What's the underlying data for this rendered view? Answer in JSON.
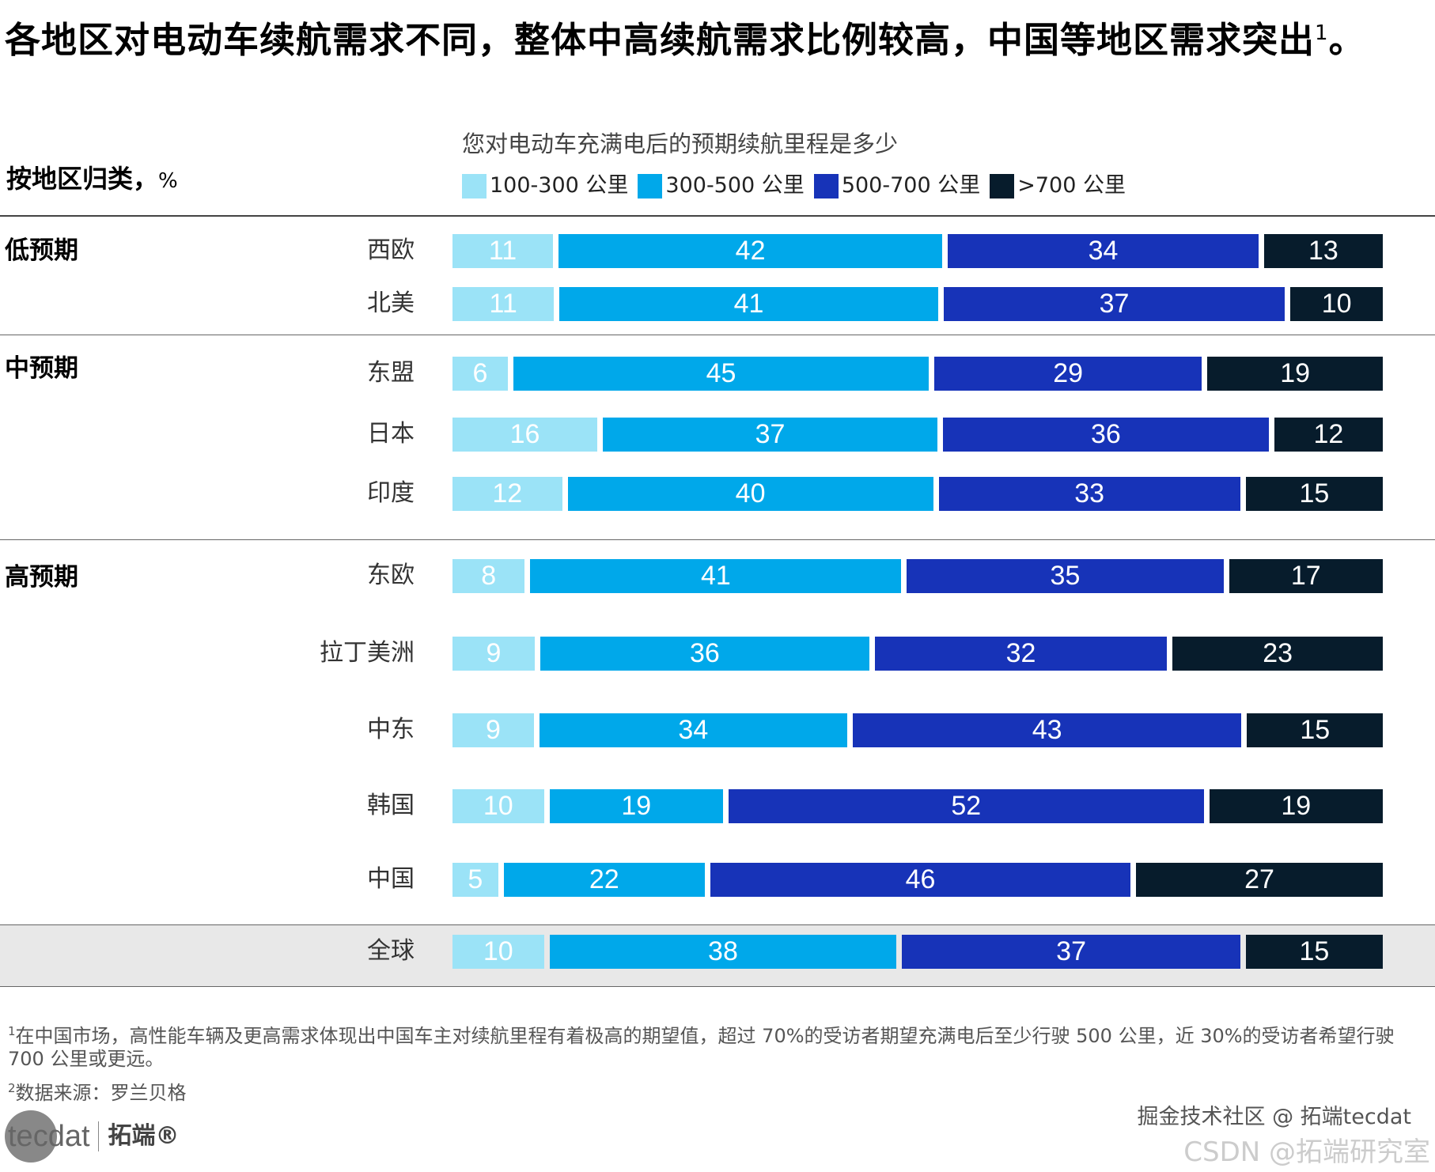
{
  "title": "各地区对电动车续航需求不同，整体中高续航需求比例较高，中国等地区需求突出",
  "title_sup": "1",
  "title_end": "。",
  "subtitle": "按地区归类，",
  "subtitle_unit": "%",
  "chart_data": {
    "type": "bar",
    "orientation": "horizontal-stacked-100",
    "title": "您对电动车充满电后的预期续航里程是多少",
    "legend": [
      "100-300 公里",
      "300-500 公里",
      "500-700 公里",
      ">700 公里"
    ],
    "legend_placement": "top",
    "colors": [
      "#9be3f7",
      "#00a8ea",
      "#1733b8",
      "#071c2c"
    ],
    "groups": [
      {
        "name": "低预期",
        "rows": [
          {
            "region": "西欧",
            "values": [
              11,
              42,
              34,
              13
            ]
          },
          {
            "region": "北美",
            "values": [
              11,
              41,
              37,
              10
            ]
          }
        ]
      },
      {
        "name": "中预期",
        "rows": [
          {
            "region": "东盟",
            "values": [
              6,
              45,
              29,
              19
            ]
          },
          {
            "region": "日本",
            "values": [
              16,
              37,
              36,
              12
            ]
          },
          {
            "region": "印度",
            "values": [
              12,
              40,
              33,
              15
            ]
          }
        ]
      },
      {
        "name": "高预期",
        "rows": [
          {
            "region": "东欧",
            "values": [
              8,
              41,
              35,
              17
            ]
          },
          {
            "region": "拉丁美洲",
            "values": [
              9,
              36,
              32,
              23
            ]
          },
          {
            "region": "中东",
            "values": [
              9,
              34,
              43,
              15
            ]
          },
          {
            "region": "韩国",
            "values": [
              10,
              19,
              52,
              19
            ]
          },
          {
            "region": "中国",
            "values": [
              5,
              22,
              46,
              27
            ]
          }
        ]
      },
      {
        "name": "",
        "rows": [
          {
            "region": "全球",
            "values": [
              10,
              38,
              37,
              15
            ]
          }
        ]
      }
    ]
  },
  "footnotes": [
    {
      "sup": "1",
      "text": "在中国市场，高性能车辆及更高需求体现出中国车主对续航里程有着极高的期望值，超过 70%的受访者期望充满电后至少行驶 500 公里，近 30%的受访者希望行驶 700 公里或更远。"
    },
    {
      "sup": "2",
      "text": "数据来源：罗兰贝格"
    }
  ],
  "logo": {
    "text": "tecdat",
    "cn": "拓端®"
  },
  "watermark": "掘金技术社区 @ 拓端tecdat",
  "watermark2": "CSDN @拓端研究室"
}
